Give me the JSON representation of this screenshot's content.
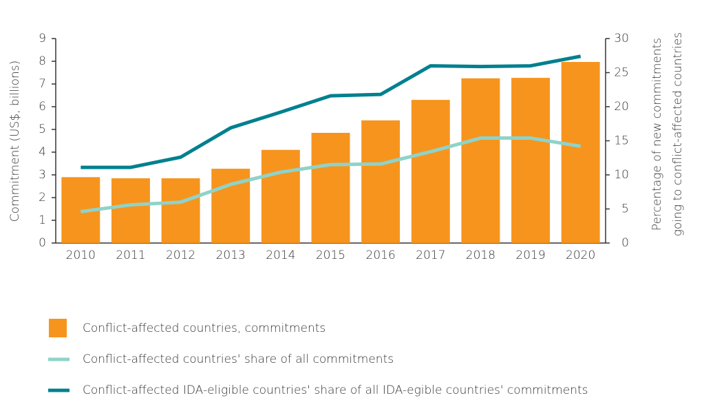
{
  "chart_data": {
    "type": "bar",
    "categories": [
      "2010",
      "2011",
      "2012",
      "2013",
      "2014",
      "2015",
      "2016",
      "2017",
      "2018",
      "2019",
      "2020"
    ],
    "y_label": "Commitment (US$, billions)",
    "y2_label": [
      "Percentage of new commitments",
      "going to conflict-affected countries"
    ],
    "ylim": [
      0,
      9
    ],
    "yticks": [
      0,
      1,
      2,
      3,
      4,
      5,
      6,
      7,
      8,
      9
    ],
    "y2lim": [
      0,
      30
    ],
    "y2ticks": [
      0,
      5,
      10,
      15,
      20,
      25,
      30
    ],
    "series": [
      {
        "name": "Conflict-affected countries, commitments",
        "type": "bar",
        "color": "#f7941d",
        "values": [
          2.9,
          2.85,
          2.85,
          3.27,
          4.1,
          4.85,
          5.4,
          6.3,
          7.25,
          7.27,
          7.97
        ]
      },
      {
        "name": "Conflict-affected countries' share of all commitments",
        "type": "line",
        "axis": "y2",
        "color": "#8fd3c9",
        "values": [
          4.6,
          5.6,
          6.0,
          8.6,
          10.4,
          11.5,
          11.6,
          13.4,
          15.4,
          15.4,
          14.2
        ]
      },
      {
        "name": "Conflict-affected IDA-eligible countries' share of all IDA-egible countries' commitments",
        "type": "line",
        "axis": "y2",
        "color": "#00808f",
        "values": [
          11.1,
          11.1,
          12.6,
          16.9,
          19.2,
          21.6,
          21.8,
          26.0,
          25.9,
          26.0,
          27.4
        ]
      }
    ]
  }
}
